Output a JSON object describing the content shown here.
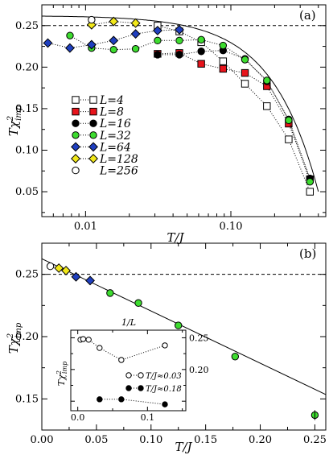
{
  "chart_data": [
    {
      "panel": "(a)",
      "type": "scatter",
      "xlabel": "T/J",
      "ylabel": "Tχ²imp",
      "xscale": "log",
      "xlim": [
        0.005,
        0.45
      ],
      "ylim": [
        0.02,
        0.275
      ],
      "x_ticklabels": [
        "0.01",
        "0.10"
      ],
      "y_ticklabels": [
        "0.05",
        "0.10",
        "0.15",
        "0.20",
        "0.25"
      ],
      "hline": 0.25,
      "legend_position": "center-left",
      "series": [
        {
          "name": "L=4",
          "marker": "square",
          "color": "#ffffff",
          "x": [
            0.0313,
            0.0442,
            0.0625,
            0.0884,
            0.125,
            0.177,
            0.25,
            0.35
          ],
          "y": [
            0.25,
            0.243,
            0.23,
            0.207,
            0.18,
            0.153,
            0.113,
            0.05
          ]
        },
        {
          "name": "L=8",
          "marker": "square",
          "color": "#e8141c",
          "x": [
            0.0313,
            0.0442,
            0.0625,
            0.0884,
            0.125,
            0.177,
            0.25,
            0.35
          ],
          "y": [
            0.216,
            0.217,
            0.204,
            0.198,
            0.193,
            0.177,
            0.132,
            0.065
          ]
        },
        {
          "name": "L=16",
          "marker": "circle",
          "color": "#000000",
          "x": [
            0.0313,
            0.0442,
            0.0625,
            0.0884,
            0.125,
            0.177,
            0.25,
            0.35
          ],
          "y": [
            0.215,
            0.215,
            0.219,
            0.22,
            0.21,
            0.183,
            0.137,
            0.066
          ]
        },
        {
          "name": "L=32",
          "marker": "circle",
          "color": "#3ddc2f",
          "x": [
            0.00781,
            0.011,
            0.0156,
            0.0221,
            0.0313,
            0.0442,
            0.0625,
            0.0884,
            0.125,
            0.177,
            0.25,
            0.35
          ],
          "y": [
            0.238,
            0.223,
            0.221,
            0.222,
            0.232,
            0.232,
            0.233,
            0.226,
            0.209,
            0.184,
            0.136,
            0.062
          ]
        },
        {
          "name": "L=64",
          "marker": "diamond",
          "color": "#1f3fbf",
          "x": [
            0.0055,
            0.0078,
            0.011,
            0.0156,
            0.0221,
            0.0313,
            0.0442
          ],
          "y": [
            0.229,
            0.223,
            0.227,
            0.232,
            0.24,
            0.244,
            0.245
          ]
        },
        {
          "name": "L=128",
          "marker": "diamond",
          "color": "#f2e81a",
          "x": [
            0.011,
            0.0156,
            0.0221
          ],
          "y": [
            0.251,
            0.255,
            0.253
          ]
        },
        {
          "name": "L=256",
          "marker": "circle",
          "color": "#ffffff",
          "x": [
            0.011
          ],
          "y": [
            0.257
          ]
        }
      ],
      "fit_curve": {
        "type": "line",
        "color": "#000000"
      }
    },
    {
      "panel": "(b)",
      "type": "scatter",
      "xlabel": "T/J",
      "ylabel": "Tχ²imp",
      "xlim": [
        0,
        0.26
      ],
      "ylim": [
        0.125,
        0.275
      ],
      "x_ticklabels": [
        "0.00",
        "0.05",
        "0.10",
        "0.15",
        "0.20",
        "0.25"
      ],
      "y_ticklabels": [
        "0.15",
        "0.20",
        "0.25"
      ],
      "hline": 0.25,
      "series": [
        {
          "name": "L=256",
          "marker": "circle",
          "color": "#ffffff",
          "x": [
            0.0078
          ],
          "y": [
            0.2565
          ]
        },
        {
          "name": "L=128",
          "marker": "diamond",
          "color": "#f2e81a",
          "x": [
            0.0156,
            0.0221
          ],
          "y": [
            0.255,
            0.253
          ]
        },
        {
          "name": "L=64",
          "marker": "diamond",
          "color": "#1f3fbf",
          "x": [
            0.0313,
            0.0442
          ],
          "y": [
            0.248,
            0.245
          ]
        },
        {
          "name": "L=32",
          "marker": "circle",
          "color": "#3ddc2f",
          "x": [
            0.0625,
            0.0884,
            0.125,
            0.177,
            0.25
          ],
          "y": [
            0.235,
            0.227,
            0.209,
            0.184,
            0.137
          ]
        }
      ],
      "fit_line": {
        "x": [
          0.0,
          0.26
        ],
        "y": [
          0.2625,
          0.1535
        ]
      },
      "inset": {
        "xlabel": "1/L",
        "ylabel": "Tχ²imp",
        "xlim": [
          -0.01,
          0.155
        ],
        "ylim": [
          0.135,
          0.262
        ],
        "x_ticklabels": [
          "0.0",
          "0.1"
        ],
        "y_ticklabels": [
          "0.20",
          "0.25"
        ],
        "series": [
          {
            "name": "T/J≈0.03",
            "marker": "circle",
            "color": "#ffffff",
            "x": [
              0.0039,
              0.0078,
              0.0156,
              0.0313,
              0.0625,
              0.125
            ],
            "y": [
              0.247,
              0.248,
              0.247,
              0.234,
              0.215,
              0.238
            ]
          },
          {
            "name": "T/J≈0.18",
            "marker": "circle",
            "color": "#000000",
            "x": [
              0.0313,
              0.0625,
              0.125
            ],
            "y": [
              0.153,
              0.153,
              0.145
            ]
          }
        ]
      }
    }
  ],
  "panel_a": {
    "tag": "(a)",
    "xlabel": "T/J",
    "ylabel_main": "Tχ",
    "ylabel_sup": "2",
    "ylabel_sub": "imp"
  },
  "panel_b": {
    "tag": "(b)",
    "xlabel": "T/J",
    "ylabel_main": "Tχ",
    "ylabel_sup": "2",
    "ylabel_sub": "imp"
  },
  "inset_text": {
    "top_label": "1/L",
    "ylabel_main": "Tχ",
    "ylabel_sup": "2",
    "ylabel_sub": "imp",
    "leg1": "T/J≈0.03",
    "leg2": "T/J≈0.18"
  }
}
